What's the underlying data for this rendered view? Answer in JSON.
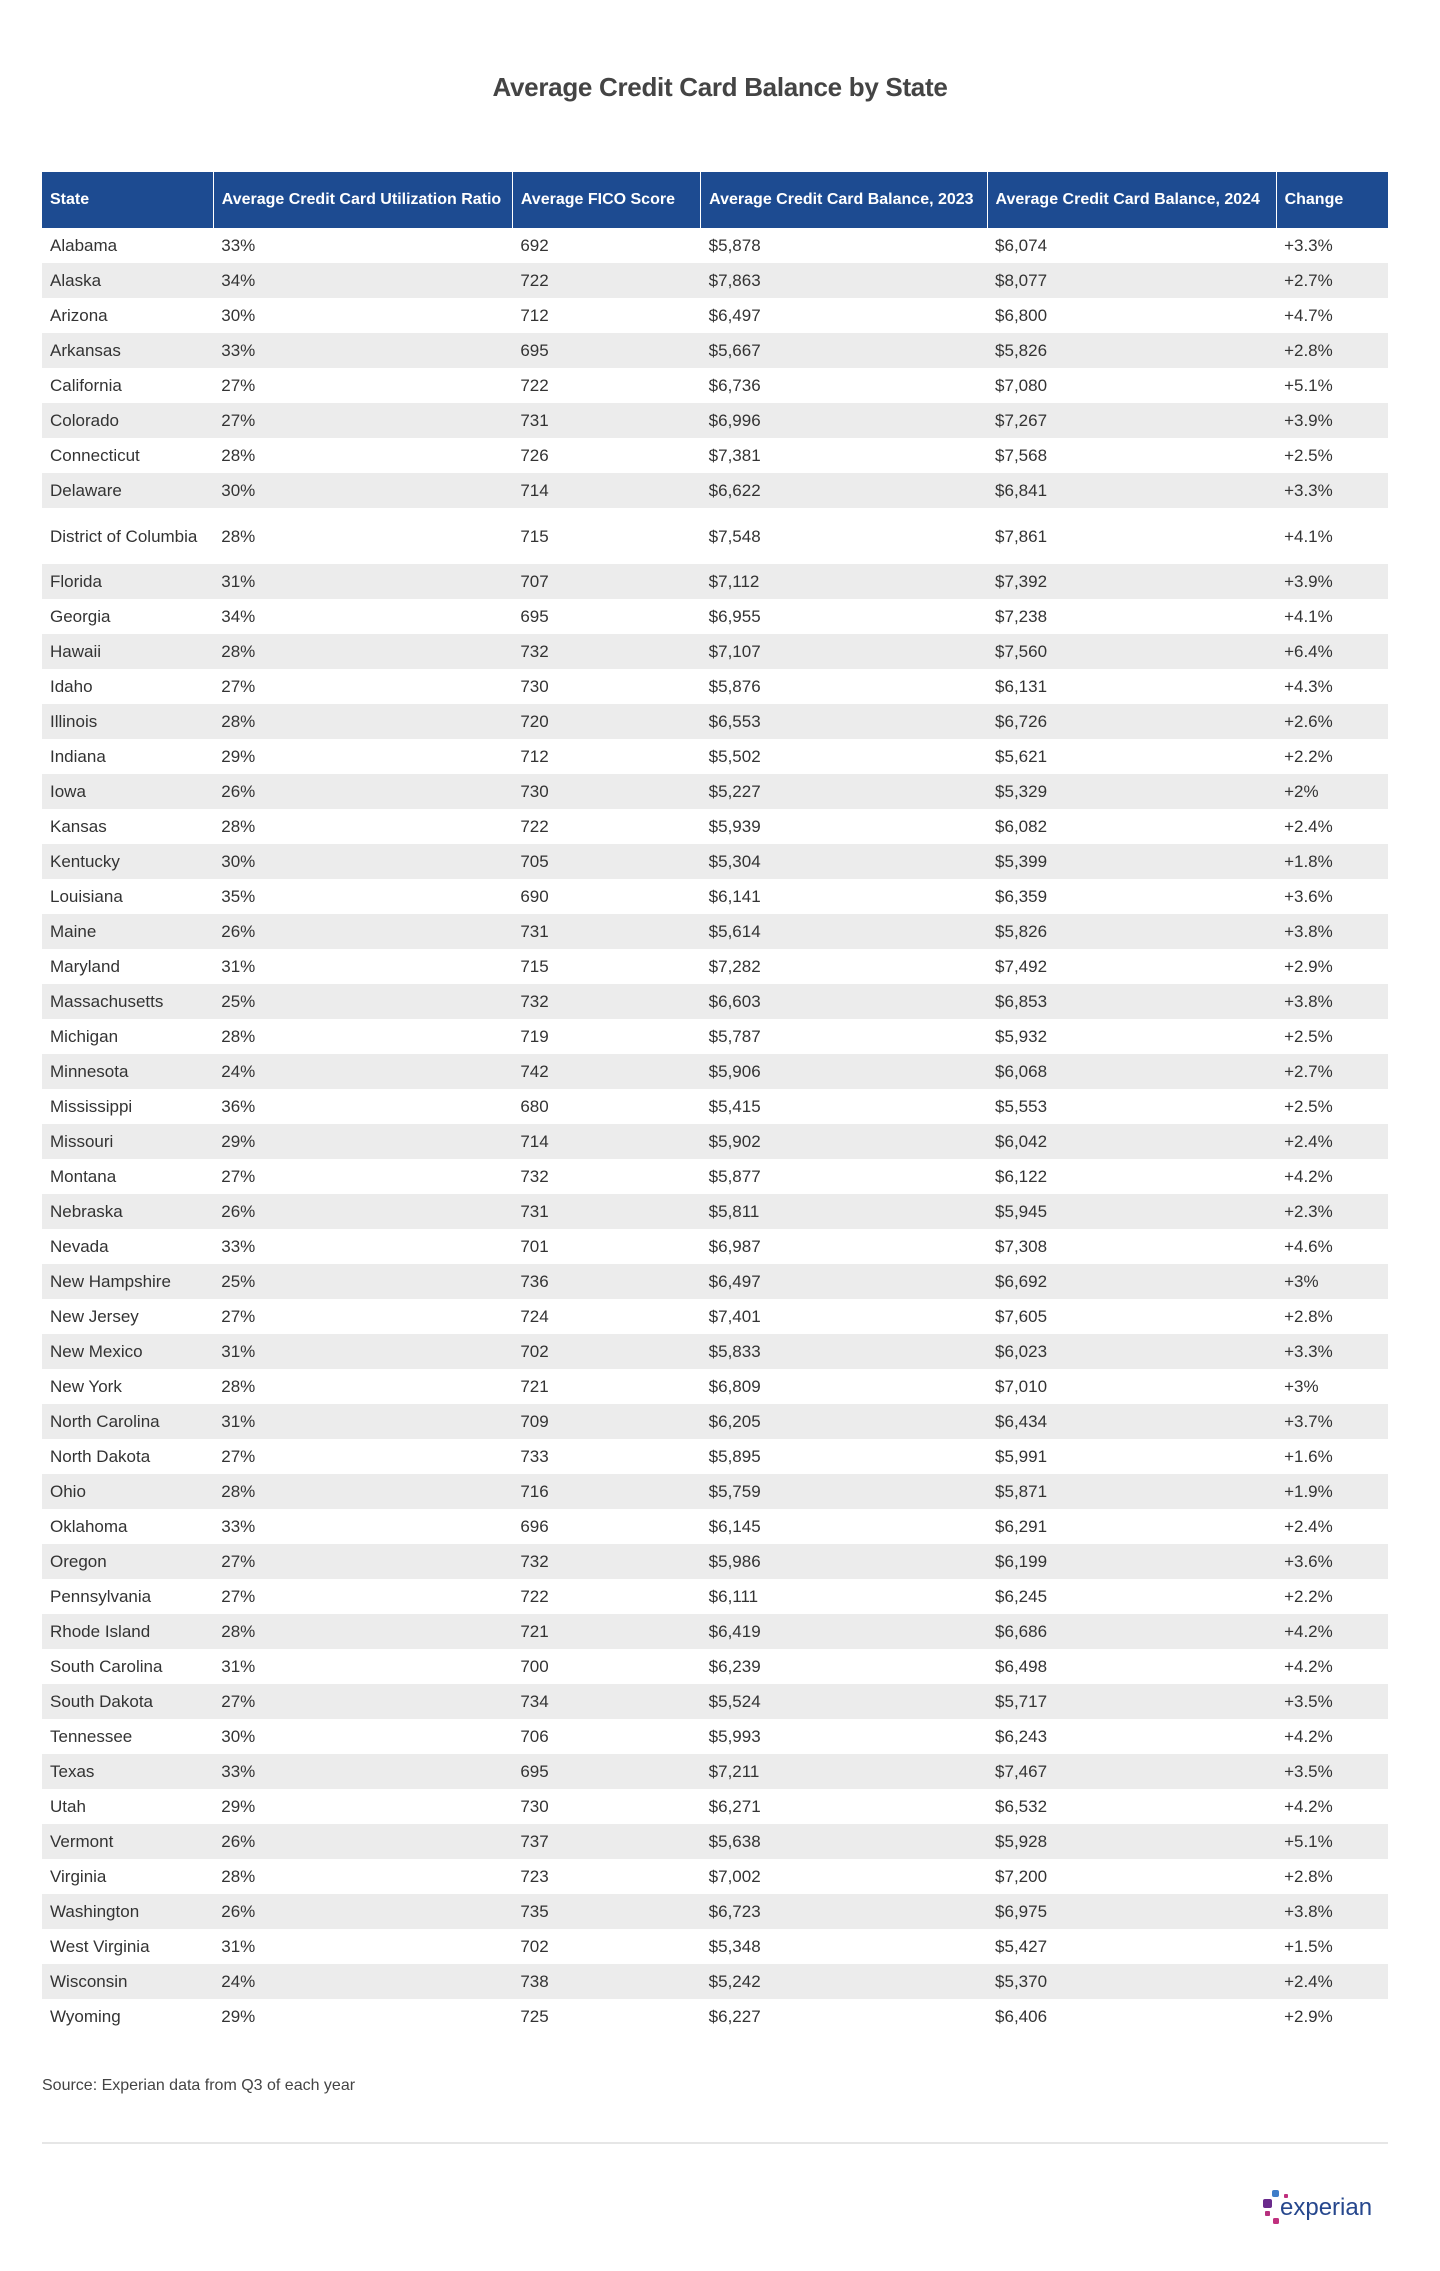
{
  "title": "Average Credit Card Balance by State",
  "columns": [
    "State",
    "Average Credit Card Utilization Ratio",
    "Average FICO Score",
    "Average Credit Card Balance, 2023",
    "Average Credit Card Balance, 2024",
    "Change"
  ],
  "rows": [
    [
      "Alabama",
      "33%",
      "692",
      "$5,878",
      "$6,074",
      "+3.3%"
    ],
    [
      "Alaska",
      "34%",
      "722",
      "$7,863",
      "$8,077",
      "+2.7%"
    ],
    [
      "Arizona",
      "30%",
      "712",
      "$6,497",
      "$6,800",
      "+4.7%"
    ],
    [
      "Arkansas",
      "33%",
      "695",
      "$5,667",
      "$5,826",
      "+2.8%"
    ],
    [
      "California",
      "27%",
      "722",
      "$6,736",
      "$7,080",
      "+5.1%"
    ],
    [
      "Colorado",
      "27%",
      "731",
      "$6,996",
      "$7,267",
      "+3.9%"
    ],
    [
      "Connecticut",
      "28%",
      "726",
      "$7,381",
      "$7,568",
      "+2.5%"
    ],
    [
      "Delaware",
      "30%",
      "714",
      "$6,622",
      "$6,841",
      "+3.3%"
    ],
    [
      "District of Columbia",
      "28%",
      "715",
      "$7,548",
      "$7,861",
      "+4.1%"
    ],
    [
      "Florida",
      "31%",
      "707",
      "$7,112",
      "$7,392",
      "+3.9%"
    ],
    [
      "Georgia",
      "34%",
      "695",
      "$6,955",
      "$7,238",
      "+4.1%"
    ],
    [
      "Hawaii",
      "28%",
      "732",
      "$7,107",
      "$7,560",
      "+6.4%"
    ],
    [
      "Idaho",
      "27%",
      "730",
      "$5,876",
      "$6,131",
      "+4.3%"
    ],
    [
      "Illinois",
      "28%",
      "720",
      "$6,553",
      "$6,726",
      "+2.6%"
    ],
    [
      "Indiana",
      "29%",
      "712",
      "$5,502",
      "$5,621",
      "+2.2%"
    ],
    [
      "Iowa",
      "26%",
      "730",
      "$5,227",
      "$5,329",
      "+2%"
    ],
    [
      "Kansas",
      "28%",
      "722",
      "$5,939",
      "$6,082",
      "+2.4%"
    ],
    [
      "Kentucky",
      "30%",
      "705",
      "$5,304",
      "$5,399",
      "+1.8%"
    ],
    [
      "Louisiana",
      "35%",
      "690",
      "$6,141",
      "$6,359",
      "+3.6%"
    ],
    [
      "Maine",
      "26%",
      "731",
      "$5,614",
      "$5,826",
      "+3.8%"
    ],
    [
      "Maryland",
      "31%",
      "715",
      "$7,282",
      "$7,492",
      "+2.9%"
    ],
    [
      "Massachusetts",
      "25%",
      "732",
      "$6,603",
      "$6,853",
      "+3.8%"
    ],
    [
      "Michigan",
      "28%",
      "719",
      "$5,787",
      "$5,932",
      "+2.5%"
    ],
    [
      "Minnesota",
      "24%",
      "742",
      "$5,906",
      "$6,068",
      "+2.7%"
    ],
    [
      "Mississippi",
      "36%",
      "680",
      "$5,415",
      "$5,553",
      "+2.5%"
    ],
    [
      "Missouri",
      "29%",
      "714",
      "$5,902",
      "$6,042",
      "+2.4%"
    ],
    [
      "Montana",
      "27%",
      "732",
      "$5,877",
      "$6,122",
      "+4.2%"
    ],
    [
      "Nebraska",
      "26%",
      "731",
      "$5,811",
      "$5,945",
      "+2.3%"
    ],
    [
      "Nevada",
      "33%",
      "701",
      "$6,987",
      "$7,308",
      "+4.6%"
    ],
    [
      "New Hampshire",
      "25%",
      "736",
      "$6,497",
      "$6,692",
      "+3%"
    ],
    [
      "New Jersey",
      "27%",
      "724",
      "$7,401",
      "$7,605",
      "+2.8%"
    ],
    [
      "New Mexico",
      "31%",
      "702",
      "$5,833",
      "$6,023",
      "+3.3%"
    ],
    [
      "New York",
      "28%",
      "721",
      "$6,809",
      "$7,010",
      "+3%"
    ],
    [
      "North Carolina",
      "31%",
      "709",
      "$6,205",
      "$6,434",
      "+3.7%"
    ],
    [
      "North Dakota",
      "27%",
      "733",
      "$5,895",
      "$5,991",
      "+1.6%"
    ],
    [
      "Ohio",
      "28%",
      "716",
      "$5,759",
      "$5,871",
      "+1.9%"
    ],
    [
      "Oklahoma",
      "33%",
      "696",
      "$6,145",
      "$6,291",
      "+2.4%"
    ],
    [
      "Oregon",
      "27%",
      "732",
      "$5,986",
      "$6,199",
      "+3.6%"
    ],
    [
      "Pennsylvania",
      "27%",
      "722",
      "$6,111",
      "$6,245",
      "+2.2%"
    ],
    [
      "Rhode Island",
      "28%",
      "721",
      "$6,419",
      "$6,686",
      "+4.2%"
    ],
    [
      "South Carolina",
      "31%",
      "700",
      "$6,239",
      "$6,498",
      "+4.2%"
    ],
    [
      "South Dakota",
      "27%",
      "734",
      "$5,524",
      "$5,717",
      "+3.5%"
    ],
    [
      "Tennessee",
      "30%",
      "706",
      "$5,993",
      "$6,243",
      "+4.2%"
    ],
    [
      "Texas",
      "33%",
      "695",
      "$7,211",
      "$7,467",
      "+3.5%"
    ],
    [
      "Utah",
      "29%",
      "730",
      "$6,271",
      "$6,532",
      "+4.2%"
    ],
    [
      "Vermont",
      "26%",
      "737",
      "$5,638",
      "$5,928",
      "+5.1%"
    ],
    [
      "Virginia",
      "28%",
      "723",
      "$7,002",
      "$7,200",
      "+2.8%"
    ],
    [
      "Washington",
      "26%",
      "735",
      "$6,723",
      "$6,975",
      "+3.8%"
    ],
    [
      "West Virginia",
      "31%",
      "702",
      "$5,348",
      "$5,427",
      "+1.5%"
    ],
    [
      "Wisconsin",
      "24%",
      "738",
      "$5,242",
      "$5,370",
      "+2.4%"
    ],
    [
      "Wyoming",
      "29%",
      "725",
      "$6,227",
      "$6,406",
      "+2.9%"
    ]
  ],
  "source": "Source: Experian data from Q3 of each year",
  "logo_text": "experian",
  "colors": {
    "header_bg": "#1d4b91",
    "stripe": "#ececec",
    "logo_text": "#26478d"
  }
}
